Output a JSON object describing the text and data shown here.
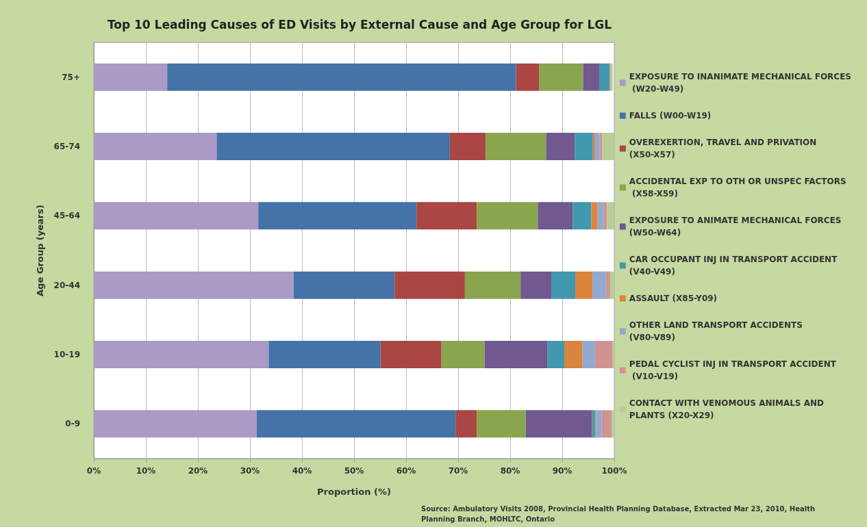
{
  "chart_data": {
    "type": "bar",
    "orientation": "horizontal",
    "stacked": true,
    "title": "Top 10 Leading Causes of ED Visits by External Cause and Age Group for LGL",
    "xlabel": "Proportion (%)",
    "ylabel": "Age Group (years)",
    "categories": [
      "75+",
      "65-74",
      "45-64",
      "20-44",
      "10-19",
      "0-9"
    ],
    "series": [
      {
        "name": "EXPOSURE TO INANIMATE MECHANICAL FORCES (W20-W49)",
        "color": "#a99ac6",
        "values": [
          14.1,
          23.6,
          31.6,
          38.4,
          33.6,
          31.3
        ]
      },
      {
        "name": "FALLS (W00-W19)",
        "color": "#4572a7",
        "values": [
          67.0,
          44.8,
          30.4,
          19.4,
          21.5,
          38.2
        ]
      },
      {
        "name": "OVEREXERTION, TRAVEL AND PRIVATION (X50-X57)",
        "color": "#aa4643",
        "values": [
          4.5,
          6.9,
          11.6,
          13.5,
          11.7,
          4.1
        ]
      },
      {
        "name": "ACCIDENTAL EXP TO OTH OR UNSPEC FACTORS (X58-X59)",
        "color": "#89a54e",
        "values": [
          8.4,
          11.6,
          11.7,
          10.7,
          8.3,
          9.4
        ]
      },
      {
        "name": "EXPOSURE TO ANIMATE MECHANICAL FORCES (W50-W64)",
        "color": "#71588f",
        "values": [
          3.1,
          5.5,
          6.7,
          5.9,
          12.1,
          12.7
        ]
      },
      {
        "name": "CAR OCCUPANT INJ IN TRANSPORT ACCIDENT (V40-V49)",
        "color": "#4198af",
        "values": [
          2.0,
          3.5,
          3.6,
          4.6,
          3.2,
          0.6
        ]
      },
      {
        "name": "ASSAULT (X85-Y09)",
        "color": "#db843d",
        "values": [
          0.1,
          0.4,
          1.2,
          3.3,
          3.5,
          0.2
        ]
      },
      {
        "name": "OTHER LAND TRANSPORT ACCIDENTS (V80-V89)",
        "color": "#93a9cf",
        "values": [
          null,
          0.9,
          1.2,
          2.6,
          2.4,
          1.1
        ]
      },
      {
        "name": "PEDAL CYCLIST INJ IN TRANSPORT ACCIDENT (V10-V19)",
        "color": "#d19392",
        "values": [
          null,
          0.5,
          0.6,
          0.8,
          3.4,
          1.9
        ]
      },
      {
        "name": "CONTACT WITH VENOMOUS ANIMALS AND PLANTS (X20-X29)",
        "color": "#b9cd96",
        "values": [
          0.5,
          2.3,
          1.4,
          0.8,
          0.3,
          0.5
        ]
      }
    ],
    "xlim": [
      0,
      100
    ],
    "xticks": [
      {
        "value": 0,
        "label": "0%"
      },
      {
        "value": 10,
        "label": "10%"
      },
      {
        "value": 20,
        "label": "20%"
      },
      {
        "value": 30,
        "label": "30%"
      },
      {
        "value": 40,
        "label": "40%"
      },
      {
        "value": 50,
        "label": "50%"
      },
      {
        "value": 60,
        "label": "60%"
      },
      {
        "value": 70,
        "label": "70%"
      },
      {
        "value": 80,
        "label": "80%"
      },
      {
        "value": 90,
        "label": "90%"
      },
      {
        "value": 100,
        "label": "100%"
      }
    ],
    "grid": "x",
    "legend": "right",
    "annotations": [
      "Source: Ambulatory Visits 2008, Provincial Health Planning Database, Extracted Mar 23, 2010, Health Planning Branch, MOHLTC, Ontario"
    ]
  }
}
